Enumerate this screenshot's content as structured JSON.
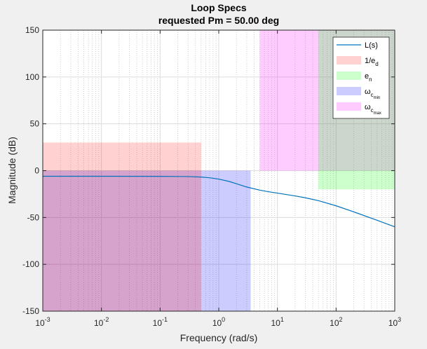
{
  "chart_data": {
    "type": "line",
    "title": "Loop Specs",
    "subtitle": "requested Pm = 50.00 deg",
    "xlabel": "Frequency (rad/s)",
    "ylabel": "Magnitude (dB)",
    "xscale": "log",
    "xlim": [
      0.001,
      1000
    ],
    "ylim": [
      -150,
      150
    ],
    "xticks": [
      {
        "value": 0.001,
        "base": "10",
        "exp": "-3"
      },
      {
        "value": 0.01,
        "base": "10",
        "exp": "-2"
      },
      {
        "value": 0.1,
        "base": "10",
        "exp": "-1"
      },
      {
        "value": 1,
        "base": "10",
        "exp": "0"
      },
      {
        "value": 10,
        "base": "10",
        "exp": "1"
      },
      {
        "value": 100,
        "base": "10",
        "exp": "2"
      },
      {
        "value": 1000,
        "base": "10",
        "exp": "3"
      }
    ],
    "yticks": [
      150,
      100,
      50,
      0,
      -50,
      -100,
      -150
    ],
    "grid": true,
    "minor_grid": true,
    "legend_position": "top-right",
    "series": [
      {
        "name": "L(s)",
        "color": "#0072bd",
        "x": [
          0.001,
          0.01,
          0.1,
          0.3,
          0.5,
          0.7,
          1,
          1.5,
          2,
          3,
          5,
          7,
          10,
          20,
          30,
          50,
          100,
          200,
          500,
          1000
        ],
        "y": [
          -6,
          -6,
          -6.1,
          -6.3,
          -6.8,
          -7.6,
          -9,
          -11.5,
          -14,
          -17.5,
          -20.8,
          -22.5,
          -24,
          -27,
          -29,
          -32,
          -37.5,
          -44,
          -53,
          -60
        ]
      }
    ],
    "regions": [
      {
        "name": "1/e",
        "sub": "d",
        "color": "#ff0000",
        "opacity": 0.18,
        "x": [
          0.001,
          0.5
        ],
        "y": [
          0,
          30
        ]
      },
      {
        "name": "e",
        "sub": "n",
        "color": "#00ff00",
        "opacity": 0.2,
        "x": [
          50,
          1000
        ],
        "y": [
          -20,
          0
        ]
      },
      {
        "name": "ω",
        "sub": "c",
        "subsub": "min",
        "color": "#0000ff",
        "opacity": 0.2,
        "x": [
          0.001,
          3.5
        ],
        "y": [
          -150,
          0
        ]
      },
      {
        "name": "ω",
        "sub": "c",
        "subsub": "max",
        "color": "#ff00ff",
        "opacity": 0.2,
        "x": [
          5,
          1000
        ],
        "y": [
          0,
          150
        ]
      },
      {
        "name": "",
        "color": "#ff0000",
        "opacity": 0.2,
        "x": [
          0.001,
          0.5
        ],
        "y": [
          -150,
          0
        ]
      },
      {
        "name": "",
        "color": "#00ff00",
        "opacity": 0.2,
        "x": [
          50,
          1000
        ],
        "y": [
          0,
          150
        ]
      }
    ]
  }
}
